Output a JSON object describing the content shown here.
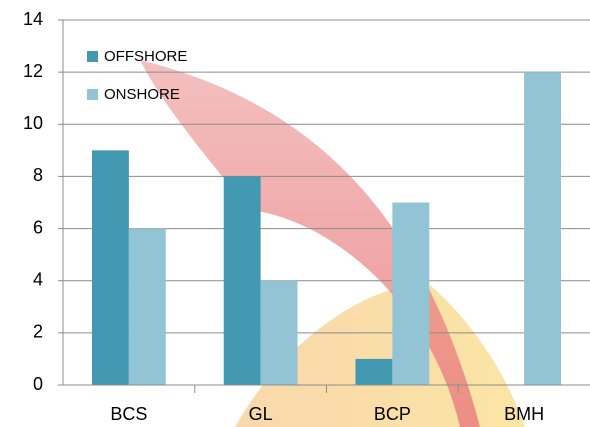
{
  "chart_data": {
    "type": "bar",
    "categories": [
      "BCS",
      "GL",
      "BCP",
      "BMH"
    ],
    "series": [
      {
        "name": "OFFSHORE",
        "color": "#4399b1",
        "values": [
          9,
          8,
          1,
          null
        ]
      },
      {
        "name": "ONSHORE",
        "color": "#93c4d6",
        "values": [
          6,
          4,
          7,
          12
        ]
      }
    ],
    "ylim": [
      0,
      14
    ],
    "yticks": [
      0,
      2,
      4,
      6,
      8,
      10,
      12,
      14
    ],
    "grid": true,
    "legend": "top-left"
  }
}
